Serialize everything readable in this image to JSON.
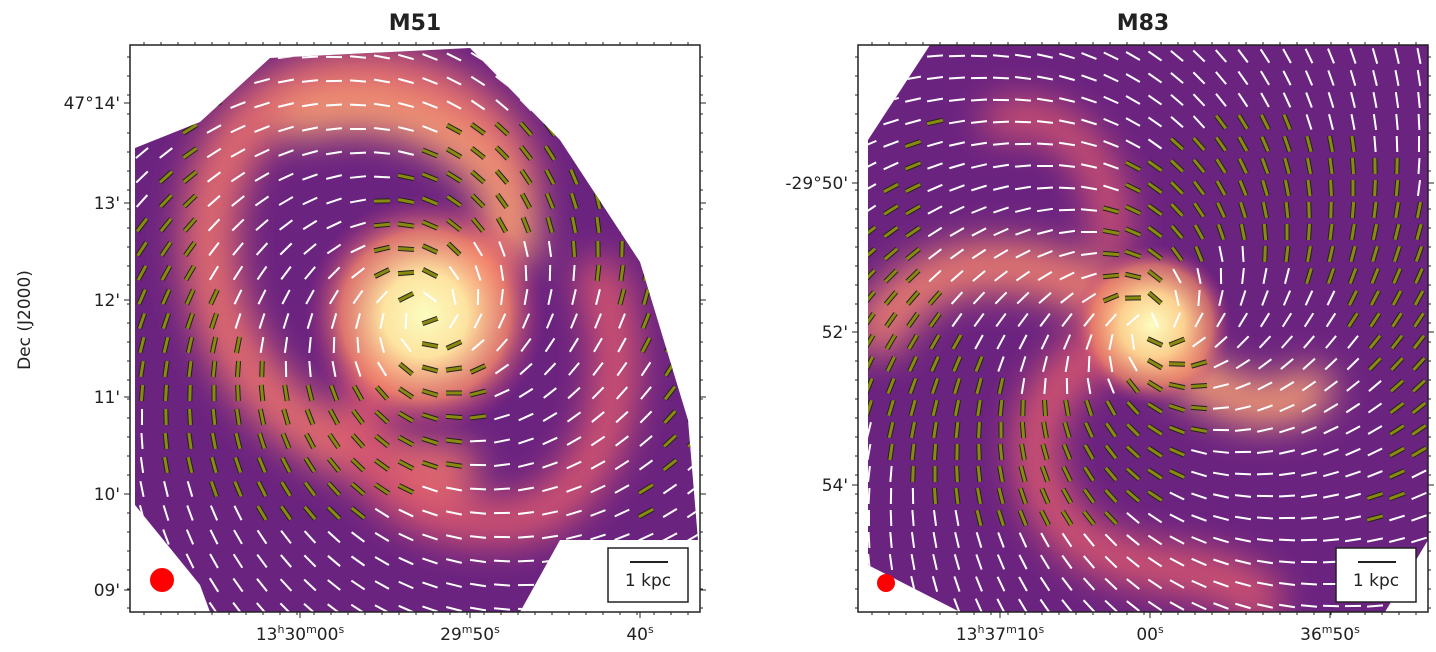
{
  "figure": {
    "y_label": "Dec (J2000)",
    "panels": [
      {
        "title": "M51",
        "y_ticks": [
          "47°14'",
          "13'",
          "12'",
          "11'",
          "10'",
          "09'"
        ],
        "x_ticks": [
          [
            "13",
            "h",
            "30",
            "m",
            "00",
            "s"
          ],
          [
            "29",
            "m",
            "50",
            "s"
          ],
          [
            "40",
            "s"
          ]
        ],
        "scale_bar": "1 kpc"
      },
      {
        "title": "M83",
        "y_ticks": [
          "-29°50'",
          "52'",
          "54'"
        ],
        "x_ticks": [
          [
            "13",
            "h",
            "37",
            "m",
            "10",
            "s"
          ],
          [
            "00",
            "s"
          ],
          [
            "36",
            "m",
            "50",
            "s"
          ]
        ],
        "scale_bar": "1 kpc"
      }
    ]
  }
}
